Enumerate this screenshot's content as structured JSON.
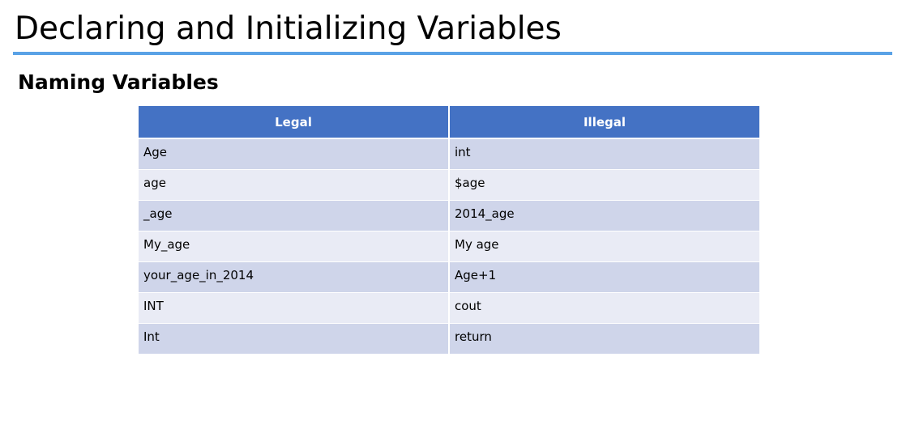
{
  "slide": {
    "title": "Declaring and Initializing Variables",
    "subtitle": "Naming Variables",
    "accent_color": "#5aa2e6"
  },
  "table": {
    "header_color": "#4472c4",
    "row_band_colors": [
      "#cfd5ea",
      "#e9ebf5"
    ],
    "columns": [
      "Legal",
      "Illegal"
    ],
    "rows": [
      [
        "Age",
        "int"
      ],
      [
        "age",
        "$age"
      ],
      [
        "_age",
        "2014_age"
      ],
      [
        "My_age",
        "My age"
      ],
      [
        "your_age_in_2014",
        "Age+1"
      ],
      [
        "INT",
        "cout"
      ],
      [
        "Int",
        "return"
      ]
    ]
  }
}
